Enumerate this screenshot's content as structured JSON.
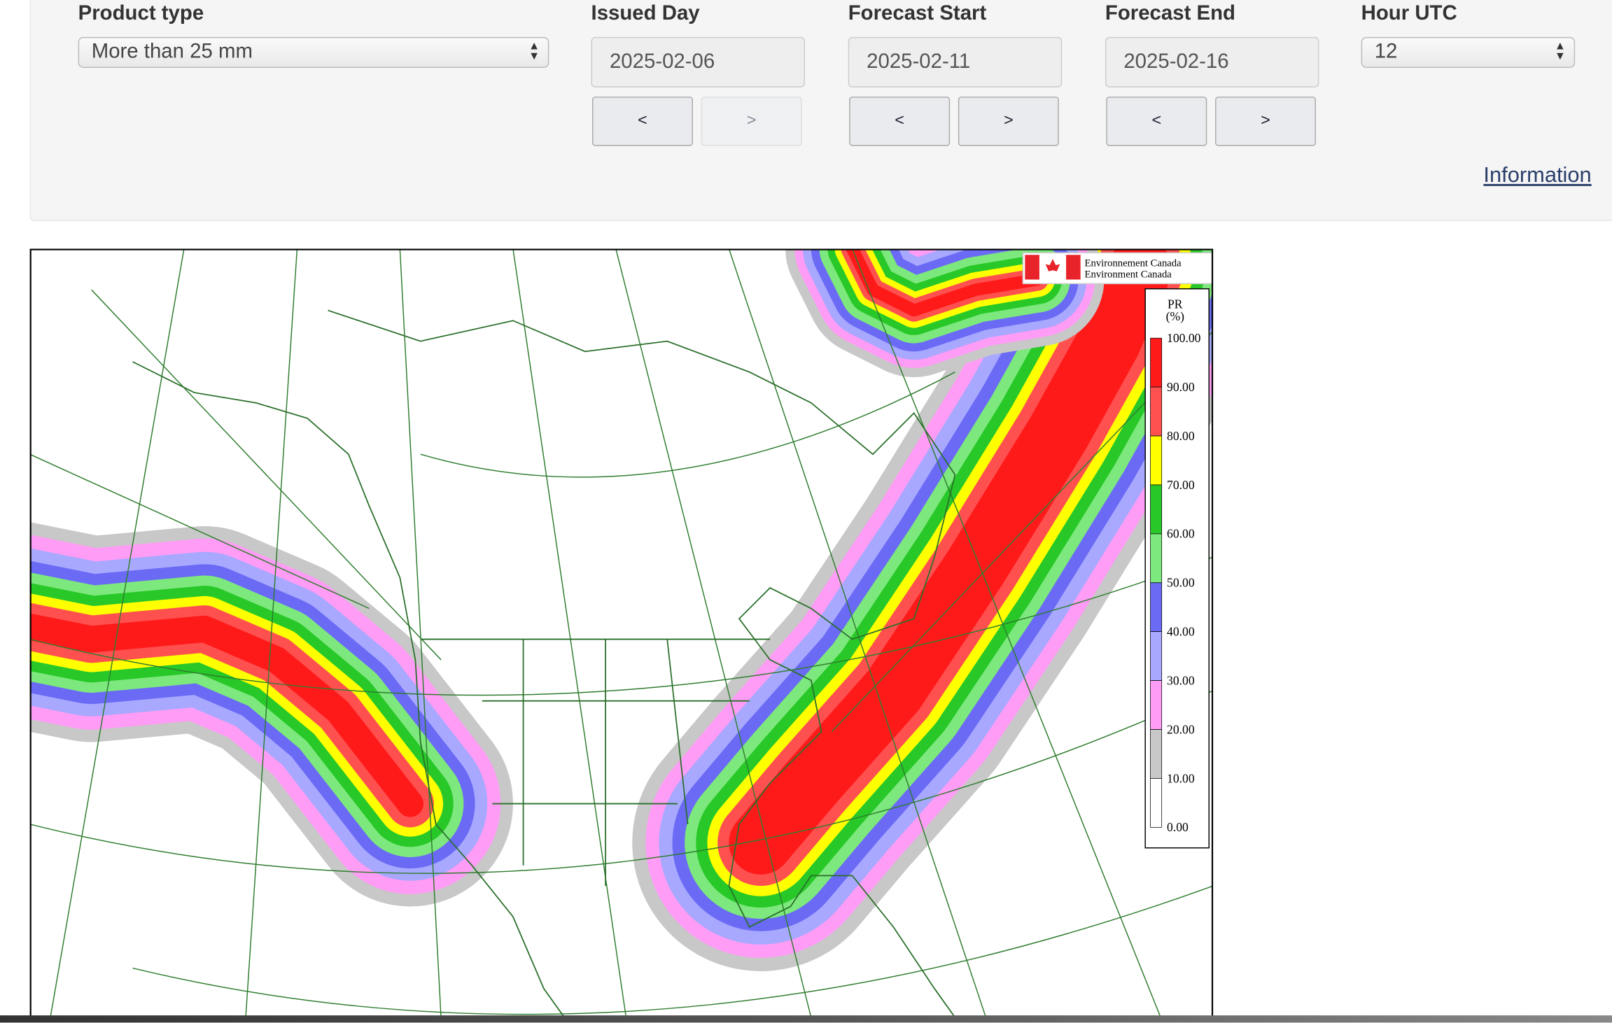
{
  "filters": [
    {
      "label": "Product type",
      "value": "More than 25 mm"
    },
    {
      "label": "Issued Day",
      "value": "2025-02-06",
      "prev": "<",
      "next": ">"
    },
    {
      "label": "Forecast Start",
      "value": "2025-02-11",
      "prev": "<",
      "next": ">"
    },
    {
      "label": "Forecast End",
      "value": "2025-02-16",
      "prev": "<",
      "next": ">"
    },
    {
      "label": "Hour UTC",
      "value": "12"
    }
  ],
  "info_link": "Information",
  "map": {
    "logo": [
      "Environnement Canada",
      "Environment Canada"
    ],
    "legend": {
      "title": "PR",
      "unit": "(%)",
      "ticks": [
        "100.00",
        "90.00",
        "80.00",
        "70.00",
        "60.00",
        "50.00",
        "40.00",
        "30.00",
        "20.00",
        "10.00",
        "0.00"
      ]
    }
  }
}
